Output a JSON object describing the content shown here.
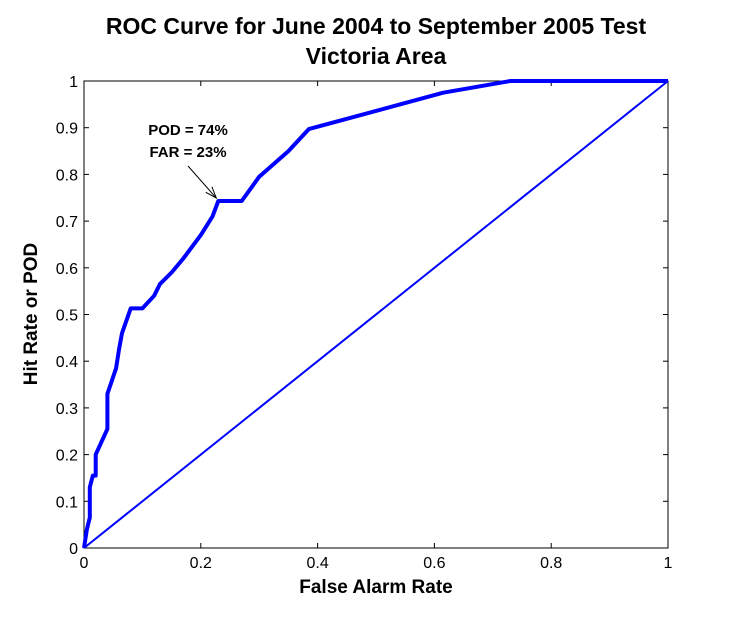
{
  "chart_data": {
    "type": "line",
    "title": "ROC Curve for June 2004 to September 2005 Test",
    "subtitle": "Victoria Area",
    "xlabel": "False Alarm Rate",
    "ylabel": "Hit Rate or POD",
    "xlim": [
      0,
      1
    ],
    "ylim": [
      0,
      1
    ],
    "xticks": [
      "0",
      "0.2",
      "0.4",
      "0.6",
      "0.8",
      "1"
    ],
    "yticks": [
      "0",
      "0.1",
      "0.2",
      "0.3",
      "0.4",
      "0.5",
      "0.6",
      "0.7",
      "0.8",
      "0.9",
      "1"
    ],
    "grid": false,
    "series": [
      {
        "color": "#0000ff",
        "style": "thick",
        "x": [
          0,
          0.005,
          0.01,
          0.01,
          0.015,
          0.02,
          0.02,
          0.04,
          0.04,
          0.055,
          0.06,
          0.065,
          0.08,
          0.1,
          0.12,
          0.13,
          0.15,
          0.17,
          0.2,
          0.22,
          0.23,
          0.27,
          0.3,
          0.35,
          0.385,
          0.615,
          0.73,
          1.0
        ],
        "y": [
          0,
          0.04,
          0.065,
          0.13,
          0.155,
          0.155,
          0.2,
          0.255,
          0.33,
          0.385,
          0.425,
          0.46,
          0.513,
          0.513,
          0.54,
          0.565,
          0.59,
          0.62,
          0.67,
          0.71,
          0.743,
          0.743,
          0.795,
          0.85,
          0.897,
          0.975,
          1.0,
          1.0
        ]
      },
      {
        "color": "#0000ff",
        "style": "thin",
        "x": [
          0,
          1
        ],
        "y": [
          0,
          1
        ]
      }
    ],
    "annotations": [
      {
        "lines": [
          "POD = 74%",
          "FAR = 23%"
        ],
        "point": [
          0.23,
          0.743
        ]
      }
    ]
  }
}
